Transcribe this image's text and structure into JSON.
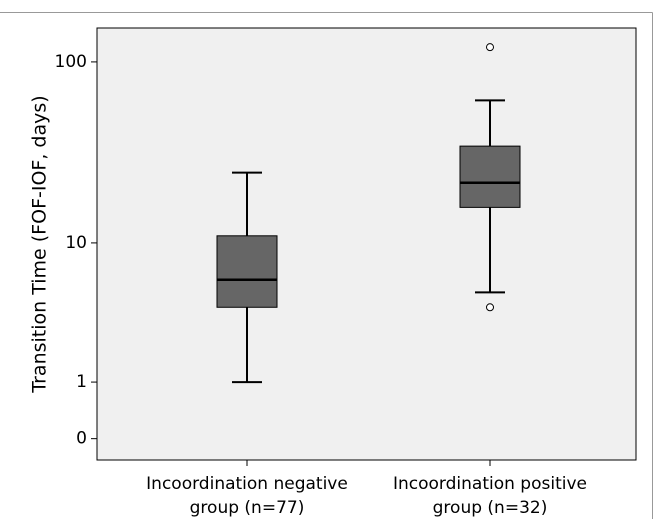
{
  "chart_data": {
    "type": "box",
    "y_label": "Transition Time (FOF-IOF, days)",
    "categories": [
      [
        "Incoordination negative",
        "group (n=77)"
      ],
      [
        "Incoordination positive",
        "group (n=32)"
      ]
    ],
    "boxes": [
      {
        "whisker_low": 1,
        "q1": 4,
        "median": 6,
        "q3": 11,
        "whisker_high": 25,
        "outliers": []
      },
      {
        "whisker_low": 5,
        "q1": 16,
        "median": 22,
        "q3": 35,
        "whisker_high": 62,
        "outliers": [
          4,
          120
        ]
      }
    ],
    "color": "#666666",
    "yscale": "log1p",
    "ylim": [
      -0.23,
      152
    ],
    "yticks": [
      0,
      1,
      10,
      100
    ],
    "grid": false
  }
}
